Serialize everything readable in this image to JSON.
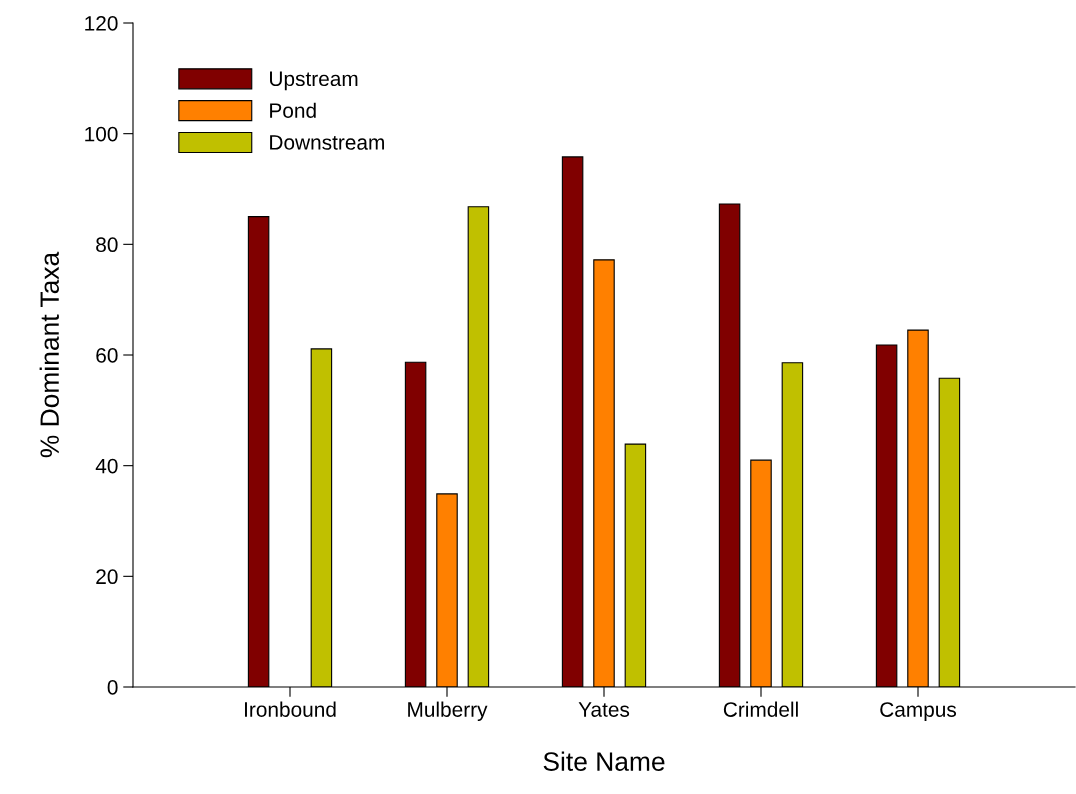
{
  "chart_data": {
    "type": "bar",
    "xlabel": "Site Name",
    "ylabel": "% Dominant Taxa",
    "categories": [
      "Ironbound",
      "Mulberry",
      "Yates",
      "Crimdell",
      "Campus"
    ],
    "series": [
      {
        "name": "Upstream",
        "color": "#800000",
        "values": [
          85,
          58.7,
          95.8,
          87.3,
          61.8
        ]
      },
      {
        "name": "Pond",
        "color": "#ff8000",
        "values": [
          null,
          34.9,
          77.2,
          41.0,
          64.5
        ]
      },
      {
        "name": "Downstream",
        "color": "#c0c000",
        "values": [
          61.1,
          86.8,
          43.9,
          58.6,
          55.8
        ]
      }
    ],
    "ylim": [
      0,
      120
    ],
    "yticks": [
      0,
      20,
      40,
      60,
      80,
      100,
      120
    ],
    "grid": false,
    "legend": "top left"
  }
}
